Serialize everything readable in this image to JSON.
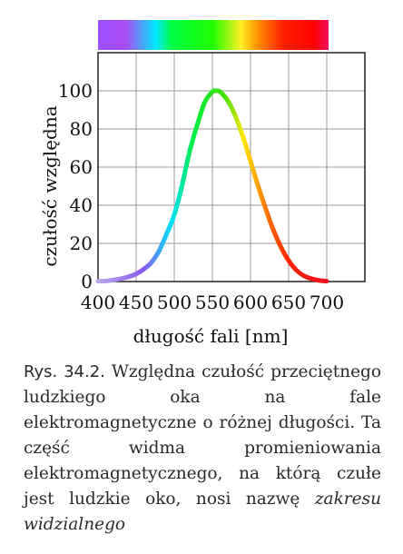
{
  "chart_data": {
    "type": "line",
    "xlabel": "długość fali [nm]",
    "ylabel": "czułość względna",
    "xlim": [
      400,
      750
    ],
    "ylim": [
      0,
      120
    ],
    "x_ticks": [
      "400",
      "450",
      "500",
      "550",
      "600",
      "650",
      "700"
    ],
    "y_ticks": [
      "0",
      "20",
      "40",
      "60",
      "80",
      "100"
    ],
    "grid": true,
    "series": [
      {
        "x": [
          400,
          410,
          420,
          430,
          440,
          450,
          460,
          470,
          480,
          490,
          500,
          510,
          520,
          530,
          540,
          550,
          555,
          560,
          570,
          580,
          590,
          600,
          610,
          620,
          630,
          640,
          650,
          660,
          670,
          680,
          690,
          700
        ],
        "values": [
          0.2,
          0.3,
          0.8,
          1.5,
          2.5,
          4,
          6.5,
          10,
          16,
          25,
          35,
          50,
          68,
          82,
          94,
          99.5,
          100,
          99.5,
          95,
          87,
          76,
          63,
          50,
          38,
          27,
          18,
          11,
          6,
          3,
          1.5,
          0.6,
          0.2
        ]
      }
    ],
    "spectrum_colors": [
      "#9a50ff",
      "#aa4cf0",
      "#00e8ff",
      "#00ff44",
      "#22ff00",
      "#ffee22",
      "#ff8800",
      "#ff2200",
      "#ff0000",
      "#ee1166"
    ]
  },
  "caption": {
    "label": "Rys. 34.2.",
    "text": " Względna czułość przeciętnego ludzkiego oka na fale elektromagnetyczne o różnej długości. Ta część widma promieniowania elektromagnetycznego, na którą czułe jest ludzkie oko, nosi nazwę ",
    "term": "zakresu widzialnego"
  }
}
